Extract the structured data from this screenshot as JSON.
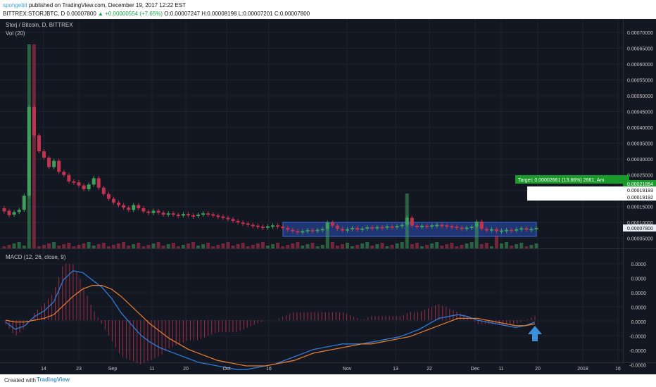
{
  "header": {
    "author": "spongebit",
    "published": "published on TradingView.com, December 19, 2017 12:22 EST",
    "ticker_line": {
      "symbol": "BITTREX:STORJBTC, D",
      "last": "0.00007800",
      "change": "▲ +0.00000554 (+7.65%)",
      "ohlc": "O:0.00007247 H:0.00008198 L:0.00007201 C:0.00007800"
    }
  },
  "main_pane": {
    "title": "Storj / Bitcoin, D, BITTREX",
    "volume_label": "Vol (20)",
    "price_axis": [
      "0.00070000",
      "0.00065000",
      "0.00060000",
      "0.00055000",
      "0.00050000",
      "0.00045000",
      "0.00040000",
      "0.00035000",
      "0.00030000",
      "0.00025000",
      "0.00020000",
      "0.00015000",
      "0.00010000",
      "0.00005000"
    ],
    "target_label": "Target: 0.00002661 (13.86%) 2661, Am",
    "price_tags": [
      "0.00021854",
      "0.00019193",
      "0.00019192",
      "0.00007800"
    ]
  },
  "macd_pane": {
    "label": "MACD (12, 26, close, 9)",
    "axis": [
      "0.0000",
      "0.0000",
      "0.0000",
      "0.0000",
      "0.0000",
      "-0.0000",
      "-0.0000",
      "-0.0000"
    ]
  },
  "time_axis": [
    "14",
    "23",
    "Sep",
    "11",
    "20",
    "Oct",
    "16",
    "Nov",
    "13",
    "22",
    "Dec",
    "11",
    "20",
    "2018",
    "16"
  ],
  "footer": {
    "created": "Created with",
    "brand": "TradingView"
  },
  "colors": {
    "background": "#131722",
    "bull": "#3f9e5a",
    "bear": "#c2334f",
    "macd": "#2e7bd6",
    "signal": "#e07a2f",
    "target": "#1a9a2a",
    "range_box": "#2a4fb8",
    "arrow": "#3e8fd9"
  },
  "chart_data": [
    {
      "type": "candlestick",
      "title": "Storj / Bitcoin, D, BITTREX",
      "x_range": [
        "2017-08-04",
        "2018-01-20"
      ],
      "ylim": [
        0,
        0.00072
      ],
      "series": [
        {
          "values": [
            [
              0.00014,
              0.00013
            ],
            [
              0.000132,
              0.000118
            ],
            [
              0.00012,
              0.000128
            ],
            [
              0.000128,
              0.000135
            ],
            [
              0.000135,
              0.00018
            ],
            [
              0.00018,
              0.00046
            ],
            [
              0.00046,
              0.00037
            ],
            [
              0.00037,
              0.00032
            ],
            [
              0.00032,
              0.0003
            ],
            [
              0.0003,
              0.00027
            ],
            [
              0.00027,
              0.00029
            ],
            [
              0.00029,
              0.000255
            ],
            [
              0.000255,
              0.000245
            ],
            [
              0.000245,
              0.000225
            ],
            [
              0.000225,
              0.000222
            ],
            [
              0.000222,
              0.000212
            ],
            [
              0.000212,
              0.0002
            ],
            [
              0.0002,
              0.000215
            ],
            [
              0.000215,
              0.000235
            ],
            [
              0.000235,
              0.000205
            ],
            [
              0.000205,
              0.000185
            ],
            [
              0.000185,
              0.00017
            ],
            [
              0.00017,
              0.000158
            ],
            [
              0.000158,
              0.00015
            ],
            [
              0.00015,
              0.000142
            ],
            [
              0.000142,
              0.000135
            ],
            [
              0.000135,
              0.00015
            ],
            [
              0.00015,
              0.00014
            ],
            [
              0.00014,
              0.00013
            ],
            [
              0.00013,
              0.000125
            ],
            [
              0.000125,
              0.000132
            ],
            [
              0.000132,
              0.000126
            ],
            [
              0.000126,
              0.00012
            ],
            [
              0.00012,
              0.000124
            ],
            [
              0.000124,
              0.00012
            ],
            [
              0.00012,
              0.000117
            ],
            [
              0.000117,
              0.000122
            ],
            [
              0.000122,
              0.000118
            ],
            [
              0.000118,
              0.000116
            ],
            [
              0.000116,
              0.00012
            ],
            [
              0.00012,
              0.000124
            ],
            [
              0.000124,
              0.000121
            ],
            [
              0.000121,
              0.000117
            ],
            [
              0.000117,
              0.000114
            ],
            [
              0.000114,
              0.00011
            ],
            [
              0.00011,
              0.000106
            ],
            [
              0.000106,
              0.0001
            ],
            [
              0.0001,
              9.5e-05
            ],
            [
              9.5e-05,
              9.2e-05
            ],
            [
              9.2e-05,
              8.8e-05
            ],
            [
              8.8e-05,
              8.5e-05
            ],
            [
              8.5e-05,
              8.2e-05
            ],
            [
              8.2e-05,
              8e-05
            ],
            [
              8e-05,
              8.3e-05
            ],
            [
              8.3e-05,
              8.6e-05
            ],
            [
              8.6e-05,
              8.2e-05
            ],
            [
              8.2e-05,
              7.8e-05
            ],
            [
              7.8e-05,
              7.2e-05
            ],
            [
              7.2e-05,
              6.8e-05
            ],
            [
              6.8e-05,
              6.6e-05
            ],
            [
              6.6e-05,
              6.8e-05
            ],
            [
              6.8e-05,
              7.1e-05
            ],
            [
              7.1e-05,
              6.9e-05
            ],
            [
              6.9e-05,
              7.2e-05
            ],
            [
              7.2e-05,
              7.5e-05
            ],
            [
              7.5e-05,
              9.5e-05
            ],
            [
              9.5e-05,
              8.5e-05
            ],
            [
              8.5e-05,
              7.5e-05
            ],
            [
              7.5e-05,
              7e-05
            ],
            [
              7e-05,
              7.4e-05
            ],
            [
              7.4e-05,
              7.8e-05
            ],
            [
              7.8e-05,
              7.2e-05
            ],
            [
              7.2e-05,
              7.6e-05
            ],
            [
              7.6e-05,
              8e-05
            ],
            [
              8e-05,
              7.8e-05
            ],
            [
              7.8e-05,
              8.1e-05
            ],
            [
              8.1e-05,
              7.9e-05
            ],
            [
              7.9e-05,
              8.3e-05
            ],
            [
              8.3e-05,
              8e-05
            ],
            [
              8e-05,
              8.4e-05
            ],
            [
              8.4e-05,
              8.8e-05
            ],
            [
              8.8e-05,
              0.00011
            ],
            [
              0.00011,
              8.5e-05
            ],
            [
              8.5e-05,
              8e-05
            ],
            [
              8e-05,
              8.5e-05
            ],
            [
              8.5e-05,
              8.3e-05
            ],
            [
              8.3e-05,
              8.6e-05
            ],
            [
              8.6e-05,
              8.8e-05
            ],
            [
              8.8e-05,
              8.6e-05
            ],
            [
              8.6e-05,
              8.4e-05
            ],
            [
              8.4e-05,
              8.2e-05
            ],
            [
              8.2e-05,
              7.9e-05
            ],
            [
              7.9e-05,
              7.6e-05
            ],
            [
              7.6e-05,
              7.9e-05
            ],
            [
              7.9e-05,
              8.2e-05
            ],
            [
              8.2e-05,
              9.8e-05
            ],
            [
              9.8e-05,
              7.5e-05
            ],
            [
              7.5e-05,
              7e-05
            ],
            [
              7e-05,
              7.4e-05
            ],
            [
              7.4e-05,
              6.8e-05
            ],
            [
              6.8e-05,
              7e-05
            ],
            [
              7e-05,
              7.2e-05
            ],
            [
              7.2e-05,
              7e-05
            ],
            [
              7e-05,
              7.4e-05
            ],
            [
              7.4e-05,
              7.7e-05
            ],
            [
              7.7e-05,
              7.2e-05
            ],
            [
              7.2e-05,
              7.5e-05
            ],
            [
              7.5e-05,
              7.8e-05
            ]
          ]
        }
      ],
      "type_detail": "values are [open, close] per daily candle, earliest to latest"
    },
    {
      "type": "line",
      "title": "MACD (12, 26, close, 9)",
      "x_range": [
        "2017-08-04",
        "2018-01-20"
      ],
      "series": [
        {
          "values": [
            -0.1,
            -0.5,
            -0.3,
            0.2,
            0.5,
            1.0,
            2.2,
            2.7,
            2.6,
            2.2,
            1.8,
            1.2,
            0.4,
            -0.2,
            -0.8,
            -1.2,
            -1.5,
            -1.7,
            -1.9,
            -2.1,
            -2.3,
            -2.4,
            -2.5,
            -2.6,
            -2.7,
            -2.7,
            -2.6,
            -2.5,
            -2.4,
            -2.2,
            -2.0,
            -1.8,
            -1.6,
            -1.5,
            -1.4,
            -1.3,
            -1.3,
            -1.3,
            -1.2,
            -1.1,
            -1.0,
            -0.9,
            -0.7,
            -0.5,
            -0.2,
            0.1,
            0.2,
            0.3,
            0.2,
            0.0,
            -0.1,
            -0.2,
            -0.3,
            -0.4,
            -0.3,
            -0.1
          ]
        },
        {
          "values": [
            0.0,
            -0.1,
            -0.1,
            0.0,
            0.1,
            0.3,
            0.8,
            1.3,
            1.7,
            1.9,
            1.9,
            1.7,
            1.3,
            0.8,
            0.3,
            -0.2,
            -0.6,
            -1.0,
            -1.3,
            -1.6,
            -1.8,
            -2.0,
            -2.2,
            -2.3,
            -2.4,
            -2.5,
            -2.5,
            -2.5,
            -2.4,
            -2.3,
            -2.2,
            -2.0,
            -1.8,
            -1.7,
            -1.6,
            -1.5,
            -1.4,
            -1.3,
            -1.3,
            -1.2,
            -1.1,
            -1.0,
            -0.9,
            -0.7,
            -0.5,
            -0.3,
            -0.1,
            0.1,
            0.1,
            0.1,
            0.0,
            -0.1,
            -0.2,
            -0.3,
            -0.3,
            -0.2
          ]
        }
      ]
    }
  ]
}
